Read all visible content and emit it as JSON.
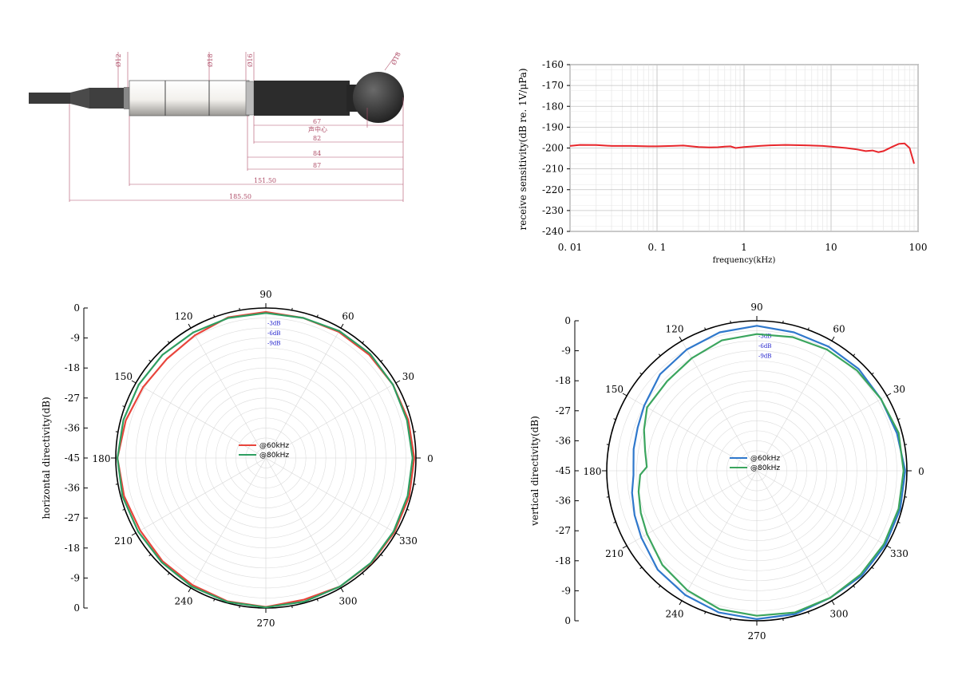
{
  "drawing": {
    "dims": [
      "Ø12",
      "Ø18",
      "Ø16",
      "Ø18",
      "67",
      "声中心",
      "82",
      "84",
      "87",
      "151.50",
      "185.50"
    ]
  },
  "chart_data": [
    {
      "type": "line",
      "xscale": "log",
      "xlabel": "frequency(kHz)",
      "ylabel": "receive sensitivity(dB re. 1V/μPa)",
      "xlim": [
        0.01,
        100
      ],
      "ylim": [
        -240,
        -160
      ],
      "xticks": [
        "0.01",
        "0.1",
        "1",
        "10",
        "100"
      ],
      "yticks": [
        "-160",
        "-170",
        "-180",
        "-190",
        "-200",
        "-210",
        "-220",
        "-230",
        "-240"
      ],
      "grid": true,
      "series": [
        {
          "color": "#e8262b",
          "x": [
            0.01,
            0.013,
            0.02,
            0.03,
            0.05,
            0.08,
            0.1,
            0.15,
            0.2,
            0.3,
            0.4,
            0.5,
            0.6,
            0.7,
            0.8,
            1,
            1.5,
            2,
            3,
            5,
            8,
            10,
            15,
            20,
            25,
            30,
            35,
            40,
            50,
            60,
            70,
            80,
            90
          ],
          "y": [
            -199,
            -198.5,
            -198.6,
            -199,
            -199,
            -199.2,
            -199.2,
            -199,
            -198.8,
            -199.5,
            -199.7,
            -199.6,
            -199.3,
            -199.2,
            -200,
            -199.5,
            -199,
            -198.7,
            -198.5,
            -198.7,
            -199,
            -199.3,
            -200,
            -200.7,
            -201.5,
            -201.2,
            -202,
            -201.5,
            -199.5,
            -198,
            -197.8,
            -200,
            -207.5
          ]
        }
      ]
    },
    {
      "type": "polar",
      "ylabel": "horizontal directivity(dB)",
      "rlim": [
        -45,
        0
      ],
      "radial_ticks": [
        "0",
        "-9",
        "-18",
        "-27",
        "-36",
        "-45",
        "-36",
        "-27",
        "-18",
        "-9",
        "0"
      ],
      "angle_ticks": [
        "0",
        "30",
        "60",
        "90",
        "120",
        "150",
        "180",
        "210",
        "240",
        "270",
        "300",
        "330"
      ],
      "ring_labels": [
        "-3dB",
        "-6dB",
        "-9dB"
      ],
      "legend": [
        "@60kHz",
        "@80kHz"
      ],
      "series": [
        {
          "name": "@60kHz",
          "color": "#e8453c",
          "angles": [
            0,
            15,
            30,
            45,
            60,
            75,
            90,
            105,
            120,
            135,
            150,
            165,
            180,
            195,
            210,
            225,
            240,
            255,
            270,
            285,
            300,
            315,
            330,
            345,
            360
          ],
          "values": [
            -0.5,
            -0.8,
            -1,
            -1.2,
            -1.3,
            -1.5,
            -1.2,
            -1.3,
            -2.5,
            -3,
            -2.5,
            -1.5,
            -0.5,
            -1,
            -1.5,
            -1.2,
            -1,
            -0.5,
            -0.3,
            -1,
            -0.5,
            -0.3,
            -0.5,
            -0.5,
            -0.5
          ]
        },
        {
          "name": "@80kHz",
          "color": "#2e9e61",
          "angles": [
            0,
            15,
            30,
            45,
            60,
            75,
            90,
            105,
            120,
            135,
            150,
            165,
            180,
            195,
            210,
            225,
            240,
            255,
            270,
            285,
            300,
            315,
            330,
            345,
            360
          ],
          "values": [
            -1,
            -1.2,
            -1,
            -0.8,
            -1,
            -1.5,
            -1.5,
            -1.5,
            -1.5,
            -1.2,
            -1,
            -0.8,
            -0.5,
            -0.5,
            -0.8,
            -0.8,
            -0.5,
            -0.3,
            -0.2,
            -0.4,
            -0.5,
            -0.5,
            -0.8,
            -1,
            -1
          ]
        }
      ]
    },
    {
      "type": "polar",
      "ylabel": "vertical directivity(dB)",
      "rlim": [
        -45,
        0
      ],
      "radial_ticks": [
        "0",
        "-9",
        "-18",
        "-27",
        "-36",
        "-45",
        "-36",
        "-27",
        "-18",
        "-9",
        "0"
      ],
      "angle_ticks": [
        "0",
        "30",
        "60",
        "90",
        "120",
        "150",
        "180",
        "210",
        "240",
        "270",
        "300",
        "330"
      ],
      "ring_labels": [
        "-3dB",
        "-6dB",
        "-9dB"
      ],
      "legend": [
        "@60kHz",
        "@80kHz"
      ],
      "series": [
        {
          "name": "@60kHz",
          "color": "#2f78cc",
          "angles": [
            0,
            15,
            30,
            45,
            60,
            75,
            90,
            105,
            120,
            135,
            150,
            160,
            170,
            178,
            182,
            190,
            200,
            210,
            225,
            240,
            255,
            270,
            285,
            300,
            315,
            330,
            345,
            360
          ],
          "values": [
            -0.5,
            -1.5,
            -2,
            -1.8,
            -2,
            -2,
            -1.5,
            -2,
            -3,
            -4,
            -6,
            -7,
            -7.5,
            -8,
            -8,
            -7,
            -6,
            -5,
            -3,
            -2,
            -1,
            -0.5,
            -0.5,
            -1,
            -0.5,
            -0.5,
            -0.5,
            -0.5
          ]
        },
        {
          "name": "@80kHz",
          "color": "#3ba55e",
          "angles": [
            0,
            15,
            30,
            45,
            60,
            75,
            90,
            105,
            120,
            135,
            150,
            160,
            170,
            178,
            182,
            190,
            200,
            210,
            225,
            240,
            255,
            270,
            285,
            300,
            315,
            330,
            345,
            360
          ],
          "values": [
            -1,
            -1,
            -2,
            -2.5,
            -3,
            -3.5,
            -4,
            -4.5,
            -6,
            -7,
            -7,
            -9,
            -11,
            -12,
            -10,
            -9,
            -8,
            -7,
            -5,
            -3.5,
            -2,
            -1.5,
            -1,
            -1,
            -1,
            -1,
            -1,
            -1
          ]
        }
      ]
    }
  ]
}
